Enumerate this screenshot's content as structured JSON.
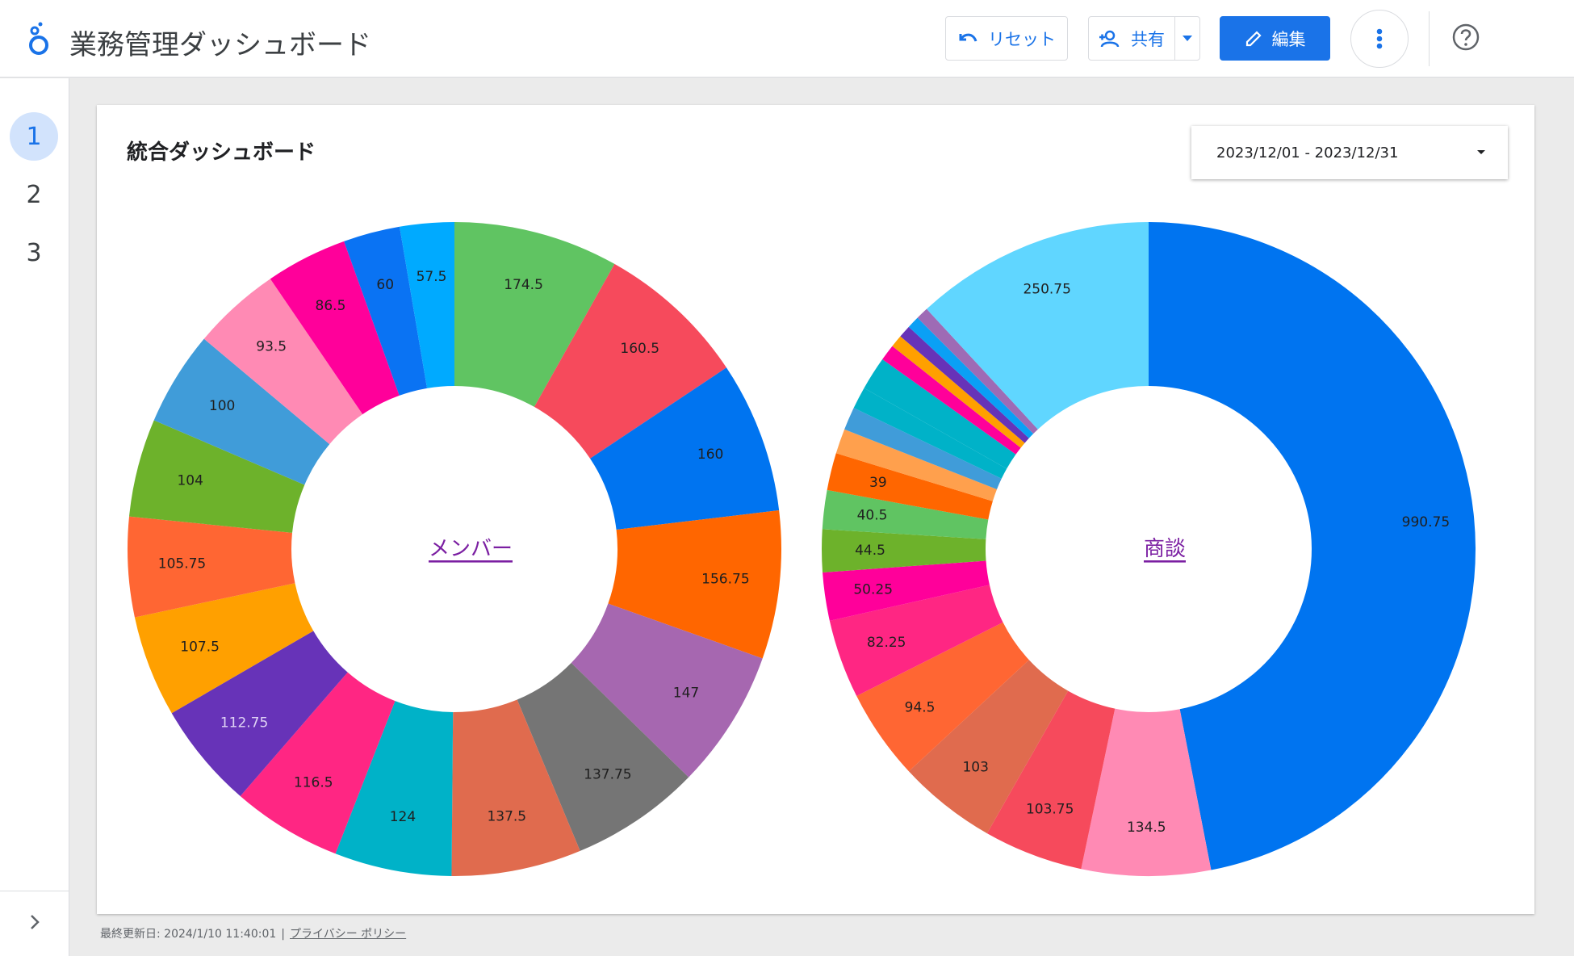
{
  "header": {
    "app_title": "業務管理ダッシュボード",
    "reset_label": "リセット",
    "share_label": "共有",
    "edit_label": "編集",
    "accent": "#1a73e8"
  },
  "sidebar": {
    "pages": [
      "1",
      "2",
      "3"
    ],
    "active_page": "1"
  },
  "report": {
    "title": "統合ダッシュボード",
    "date_range": "2023/12/01 - 2023/12/31"
  },
  "footer": {
    "last_updated": "最終更新日: 2024/1/10 11:40:01",
    "privacy_link": "プライバシー ポリシー"
  },
  "chart_data": [
    {
      "type": "pie",
      "donut": true,
      "center_label": "メンバー",
      "values": [
        174.5,
        160.5,
        160,
        156.75,
        147,
        137.75,
        137.5,
        124,
        116.5,
        112.75,
        107.5,
        105.75,
        104,
        100,
        93.5,
        86.5,
        60,
        57.5
      ],
      "labels": [
        "174.5",
        "160.5",
        "160",
        "156.75",
        "147",
        "137.75",
        "137.5",
        "124",
        "116.5",
        "112.75",
        "107.5",
        "105.75",
        "104",
        "100",
        "93.5",
        "86.5",
        "60",
        "57.5"
      ],
      "colors": [
        "#60c462",
        "#f64a5c",
        "#0074f0",
        "#ff6600",
        "#a667b0",
        "#757575",
        "#e06b4e",
        "#00b2c8",
        "#ff2683",
        "#6733b8",
        "#ffa000",
        "#ff6633",
        "#6db22b",
        "#409cd9",
        "#ff8ab4",
        "#ff009a",
        "#0a73f3",
        "#00aaff"
      ]
    },
    {
      "type": "pie",
      "donut": true,
      "center_label": "商談",
      "values": [
        990.75,
        134.5,
        103.75,
        103,
        94.5,
        82.25,
        50.25,
        44.5,
        40.5,
        39,
        26,
        24,
        23,
        35,
        17,
        13,
        13,
        13,
        13,
        250.75
      ],
      "labels": [
        "990.75",
        "134.5",
        "103.75",
        "103",
        "94.5",
        "82.25",
        "50.25",
        "44.5",
        "40.5",
        "39",
        "",
        "",
        "",
        "",
        "",
        "",
        "",
        "",
        "",
        "250.75"
      ],
      "colors": [
        "#0074f0",
        "#ff8ab4",
        "#f64a5c",
        "#e06b4e",
        "#ff6633",
        "#ff2683",
        "#ff009a",
        "#6db22b",
        "#60c462",
        "#ff6600",
        "#ffa04d",
        "#409cd9",
        "#00b2c8",
        "#00b2c8",
        "#ff009a",
        "#ffa000",
        "#6733b8",
        "#0aa0f5",
        "#9e6bb5",
        "#60d6ff"
      ]
    }
  ]
}
